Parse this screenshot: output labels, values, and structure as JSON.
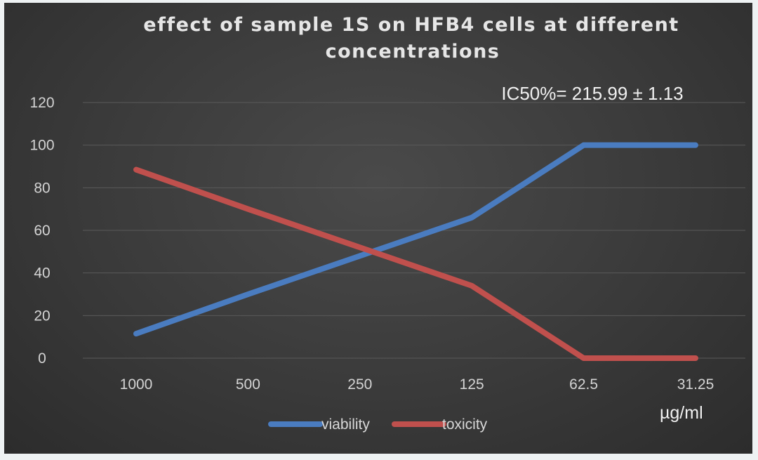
{
  "chart_data": {
    "type": "line",
    "title_lines": [
      "effect of sample 1S on HFB4 cells at different",
      "concentrations"
    ],
    "categories": [
      "1000",
      "500",
      "250",
      "125",
      "62.5",
      "31.25"
    ],
    "x_unit": "µg/ml",
    "ylim": [
      0,
      120
    ],
    "yticks": [
      0,
      20,
      40,
      60,
      80,
      100,
      120
    ],
    "grid": true,
    "annotation": "IC50%= 215.99 ± 1.13",
    "legend_position": "bottom",
    "series": [
      {
        "name": "viability",
        "color": "#4a7cc0",
        "values": [
          11.5,
          30,
          48,
          66,
          100,
          100
        ]
      },
      {
        "name": "toxicity",
        "color": "#c0504d",
        "values": [
          88.5,
          70,
          52,
          34,
          0,
          0
        ]
      }
    ]
  }
}
